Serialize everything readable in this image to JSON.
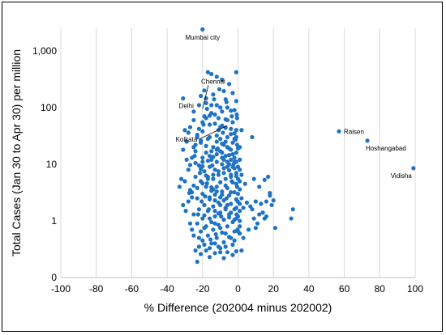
{
  "chart_data": {
    "type": "scatter",
    "xlabel": "% Difference (202004 minus 202002)",
    "ylabel": "Total Cases (Jan 30 to Apr 30) per million",
    "xlim": [
      -100,
      100
    ],
    "ylim": [
      0.1,
      2500
    ],
    "y_scale": "log",
    "x_ticks": [
      -100,
      -80,
      -60,
      -40,
      -20,
      0,
      20,
      40,
      60,
      80,
      100
    ],
    "y_ticks": [
      {
        "value": 0.1,
        "label": "0"
      },
      {
        "value": 1,
        "label": "1"
      },
      {
        "value": 10,
        "label": "10"
      },
      {
        "value": 100,
        "label": "100"
      },
      {
        "value": 1000,
        "label": "1,000"
      }
    ],
    "grid": "vertical-major",
    "marker_color": "#1f73c2",
    "annotations": [
      {
        "text": "Mumbai city",
        "x": -20,
        "y": 2400
      },
      {
        "text": "Chennai",
        "x": -14,
        "y": 190
      },
      {
        "text": "Delhi",
        "x": -31,
        "y": 145
      },
      {
        "text": "Kolkata",
        "x": -12,
        "y": 45
      },
      {
        "text": "Raisen",
        "x": 57,
        "y": 38
      },
      {
        "text": "Hoshangabad",
        "x": 73,
        "y": 26
      },
      {
        "text": "Vidisha",
        "x": 99,
        "y": 8.5
      }
    ],
    "points": [
      [
        -20,
        2400
      ],
      [
        -31,
        145
      ],
      [
        -17,
        420
      ],
      [
        -15,
        390
      ],
      [
        -12,
        350
      ],
      [
        -1,
        420
      ],
      [
        -9,
        310
      ],
      [
        -19,
        200
      ],
      [
        -8,
        195
      ],
      [
        -5,
        260
      ],
      [
        -14,
        170
      ],
      [
        -18,
        120
      ],
      [
        -10,
        100
      ],
      [
        -2,
        90
      ],
      [
        -22,
        110
      ],
      [
        -7,
        140
      ],
      [
        -25,
        60
      ],
      [
        -13,
        75
      ],
      [
        -6,
        60
      ],
      [
        -16,
        50
      ],
      [
        -3,
        55
      ],
      [
        -27,
        45
      ],
      [
        -20,
        38
      ],
      [
        -9,
        48
      ],
      [
        -11,
        40
      ],
      [
        -4,
        34
      ],
      [
        -1,
        40
      ],
      [
        -23,
        30
      ],
      [
        -17,
        28
      ],
      [
        -12,
        32
      ],
      [
        -6,
        30
      ],
      [
        -2,
        28
      ],
      [
        -29,
        25
      ],
      [
        -21,
        24
      ],
      [
        -8,
        22
      ],
      [
        -14,
        20
      ],
      [
        -5,
        19
      ],
      [
        -0.5,
        22
      ],
      [
        -24,
        17
      ],
      [
        -18,
        16
      ],
      [
        -10,
        17
      ],
      [
        -3,
        15
      ],
      [
        -7,
        14
      ],
      [
        -26,
        13
      ],
      [
        -15,
        12
      ],
      [
        -12,
        11
      ],
      [
        -20,
        11
      ],
      [
        -4,
        12
      ],
      [
        -1,
        11
      ],
      [
        -9,
        10
      ],
      [
        -22,
        9.5
      ],
      [
        -16,
        9
      ],
      [
        -6,
        9
      ],
      [
        -2,
        8.5
      ],
      [
        -28,
        8
      ],
      [
        -13,
        8
      ],
      [
        -19,
        7.5
      ],
      [
        -8,
        7
      ],
      [
        -11,
        6.5
      ],
      [
        -4,
        6.5
      ],
      [
        -24,
        6
      ],
      [
        -17,
        6
      ],
      [
        -1,
        6.2
      ],
      [
        -14,
        5.5
      ],
      [
        -7,
        5.5
      ],
      [
        -30,
        5
      ],
      [
        -21,
        5
      ],
      [
        -10,
        4.8
      ],
      [
        -3,
        4.8
      ],
      [
        -25,
        4.2
      ],
      [
        -18,
        4
      ],
      [
        -12,
        4
      ],
      [
        -6,
        3.8
      ],
      [
        -0.5,
        4
      ],
      [
        -27,
        3.5
      ],
      [
        -15,
        3.4
      ],
      [
        -9,
        3.3
      ],
      [
        -2,
        3.2
      ],
      [
        -20,
        3
      ],
      [
        -13,
        2.9
      ],
      [
        -5,
        2.8
      ],
      [
        -23,
        2.5
      ],
      [
        -16,
        2.4
      ],
      [
        -8,
        2.3
      ],
      [
        -1,
        2.4
      ],
      [
        -28,
        2.2
      ],
      [
        -11,
        2.1
      ],
      [
        -4,
        2
      ],
      [
        -19,
        1.9
      ],
      [
        -14,
        1.8
      ],
      [
        -7,
        1.7
      ],
      [
        -22,
        1.6
      ],
      [
        -2,
        1.6
      ],
      [
        -17,
        1.5
      ],
      [
        -10,
        1.4
      ],
      [
        -25,
        1.3
      ],
      [
        -5,
        1.3
      ],
      [
        -13,
        1.2
      ],
      [
        -20,
        1.1
      ],
      [
        -8,
        1.05
      ],
      [
        -1,
        1.1
      ],
      [
        -15,
        0.95
      ],
      [
        -3,
        0.95
      ],
      [
        -23,
        0.9
      ],
      [
        -11,
        0.85
      ],
      [
        -18,
        0.8
      ],
      [
        -6,
        0.8
      ],
      [
        -14,
        0.7
      ],
      [
        -21,
        0.65
      ],
      [
        -9,
        0.62
      ],
      [
        -2,
        0.65
      ],
      [
        -17,
        0.55
      ],
      [
        -12,
        0.5
      ],
      [
        -5,
        0.52
      ],
      [
        -20,
        0.45
      ],
      [
        -8,
        0.42
      ],
      [
        -15,
        0.4
      ],
      [
        -3,
        0.38
      ],
      [
        -22,
        0.35
      ],
      [
        -10,
        0.33
      ],
      [
        -18,
        0.3
      ],
      [
        -6,
        0.28
      ],
      [
        -13,
        0.27
      ],
      [
        -1,
        0.29
      ],
      [
        -21,
        0.26
      ],
      [
        -16,
        0.23
      ],
      [
        -8,
        0.22
      ],
      [
        -24,
        0.3
      ],
      [
        -23,
        0.19
      ],
      [
        -11,
        0.35
      ],
      [
        -27,
        0.9
      ],
      [
        -26,
        2.6
      ],
      [
        -29,
        12
      ],
      [
        -31,
        18
      ],
      [
        -30,
        40
      ],
      [
        -28,
        36
      ],
      [
        -32,
        5.5
      ],
      [
        -33,
        4
      ],
      [
        -31,
        1.9
      ],
      [
        -26,
        0.7
      ],
      [
        -24,
        22
      ],
      [
        -25,
        85
      ],
      [
        -21,
        160
      ],
      [
        -16,
        72
      ],
      [
        -11,
        65
      ],
      [
        -7,
        44
      ],
      [
        -4,
        88
      ],
      [
        -1,
        130
      ],
      [
        -0.5,
        65
      ],
      [
        -2,
        35
      ],
      [
        -12,
        25
      ],
      [
        -9,
        16
      ],
      [
        -16,
        14
      ],
      [
        -20,
        13
      ],
      [
        -5,
        7.8
      ],
      [
        -1,
        4.5
      ],
      [
        -0.2,
        2.2
      ],
      [
        -0.8,
        1.3
      ],
      [
        -0.3,
        0.7
      ],
      [
        -14,
        3.6
      ],
      [
        0,
        19
      ],
      [
        0,
        9
      ],
      [
        0,
        5.5
      ],
      [
        0,
        3
      ],
      [
        0,
        1.2
      ],
      [
        0,
        0.65
      ],
      [
        -0.7,
        75
      ],
      [
        -1.5,
        27
      ],
      [
        -2.5,
        10
      ],
      [
        -3.5,
        5
      ],
      [
        -6.5,
        2.5
      ],
      [
        -9.5,
        1.2
      ],
      [
        -12.5,
        0.58
      ],
      [
        -15.5,
        0.47
      ],
      [
        -18.5,
        2.7
      ],
      [
        -21.5,
        7
      ],
      [
        -24.5,
        14
      ],
      [
        -27.5,
        3.1
      ],
      [
        -29.5,
        1.5
      ],
      [
        -19.5,
        50
      ],
      [
        -17.5,
        95
      ],
      [
        -13.5,
        140
      ],
      [
        -10.5,
        210
      ],
      [
        -6.5,
        125
      ],
      [
        -3.5,
        70
      ],
      [
        -8.5,
        36
      ],
      [
        -11.5,
        19
      ],
      [
        -14.5,
        9.5
      ],
      [
        -17.5,
        4.6
      ],
      [
        -20.5,
        2.2
      ],
      [
        -22.5,
        1.3
      ],
      [
        -19,
        0.75
      ],
      [
        -16.5,
        1.6
      ],
      [
        -13,
        1.5
      ],
      [
        -10,
        2.6
      ],
      [
        -7,
        4.2
      ],
      [
        -4,
        6
      ],
      [
        -3,
        9
      ],
      [
        -6,
        11
      ],
      [
        -9,
        13
      ],
      [
        -12,
        15
      ],
      [
        -15,
        17
      ],
      [
        -18,
        21
      ],
      [
        -21,
        26
      ],
      [
        -23,
        33
      ],
      [
        -20,
        55
      ],
      [
        -18,
        65
      ],
      [
        -15,
        80
      ],
      [
        -12,
        110
      ],
      [
        -9,
        85
      ],
      [
        -6,
        100
      ],
      [
        -3,
        180
      ],
      [
        -18,
        145
      ],
      [
        -15,
        110
      ],
      [
        -10,
        45
      ],
      [
        -7,
        25
      ],
      [
        -4,
        18
      ],
      [
        -1,
        16
      ],
      [
        -2,
        13
      ],
      [
        -5,
        10
      ],
      [
        -8,
        8.5
      ],
      [
        -11,
        7.5
      ],
      [
        -14,
        6.5
      ],
      [
        -17,
        5.5
      ],
      [
        -20,
        4.6
      ],
      [
        -23,
        3.8
      ],
      [
        -26,
        3.2
      ],
      [
        -16,
        2.6
      ],
      [
        -13,
        2.3
      ],
      [
        -10,
        1.9
      ],
      [
        -7,
        1.6
      ],
      [
        -4,
        1.4
      ],
      [
        -1,
        1.7
      ],
      [
        -19,
        1.25
      ],
      [
        -16,
        1.1
      ],
      [
        -13,
        0.9
      ],
      [
        -10,
        0.75
      ],
      [
        -7,
        0.6
      ],
      [
        -4,
        0.5
      ],
      [
        -2,
        0.45
      ],
      [
        -25,
        0.55
      ],
      [
        -22,
        0.5
      ],
      [
        -19,
        0.38
      ],
      [
        -16,
        0.33
      ],
      [
        -13,
        0.4
      ],
      [
        -10,
        0.28
      ],
      [
        -7,
        0.35
      ],
      [
        -3,
        0.25
      ],
      [
        -2,
        1.05
      ],
      [
        -5,
        1.15
      ],
      [
        -9,
        2.9
      ],
      [
        -12,
        3.3
      ],
      [
        -15,
        3.9
      ],
      [
        -18,
        6.3
      ],
      [
        -21,
        8.2
      ],
      [
        -24,
        10.5
      ],
      [
        -27,
        9.7
      ],
      [
        -25,
        20
      ],
      [
        -22,
        42
      ],
      [
        -19,
        70
      ],
      [
        -16,
        30
      ],
      [
        -13,
        52
      ],
      [
        -10,
        28
      ],
      [
        -7,
        62
      ],
      [
        -4,
        42
      ],
      [
        -1,
        30
      ],
      [
        -3,
        24
      ],
      [
        -6,
        20
      ],
      [
        -9,
        23
      ],
      [
        -12,
        18
      ],
      [
        -14,
        13.5
      ],
      [
        -17,
        11.5
      ],
      [
        -20,
        9.2
      ],
      [
        -8,
        12
      ],
      [
        -5,
        14.5
      ],
      [
        -2,
        11
      ],
      [
        -1,
        7
      ],
      [
        -4,
        3.2
      ],
      [
        -6,
        1.9
      ],
      [
        -11,
        1.35
      ],
      [
        1,
        20
      ],
      [
        1,
        12
      ],
      [
        1,
        8
      ],
      [
        1,
        5
      ],
      [
        1,
        3.6
      ],
      [
        1,
        2
      ],
      [
        1,
        1.5
      ],
      [
        1,
        1
      ],
      [
        1,
        0.8
      ],
      [
        1,
        0.6
      ],
      [
        2,
        40
      ],
      [
        2,
        6.5
      ],
      [
        2,
        2.5
      ],
      [
        3,
        1.7
      ],
      [
        3,
        0.5
      ],
      [
        2,
        0.3
      ],
      [
        4,
        4.5
      ],
      [
        5,
        2.1
      ],
      [
        6,
        0.7
      ],
      [
        7,
        1.8
      ],
      [
        8,
        30
      ],
      [
        9,
        5.5
      ],
      [
        10,
        2.2
      ],
      [
        11,
        0.9
      ],
      [
        12,
        4
      ],
      [
        13,
        2
      ],
      [
        14,
        1.4
      ],
      [
        15,
        5.3
      ],
      [
        16,
        1.2
      ],
      [
        17,
        6
      ],
      [
        18,
        2.8
      ],
      [
        19,
        1.9
      ],
      [
        20,
        2.3
      ],
      [
        21,
        0.75
      ],
      [
        30,
        1.1
      ],
      [
        31,
        1.6
      ],
      [
        57,
        38
      ],
      [
        73,
        26
      ],
      [
        99,
        8.5
      ],
      [
        12,
        1.3
      ],
      [
        15,
        1.1
      ],
      [
        16,
        2.2
      ],
      [
        18,
        3.1
      ],
      [
        8,
        1.6
      ],
      [
        9,
        1.1
      ],
      [
        10,
        0.75
      ]
    ]
  }
}
